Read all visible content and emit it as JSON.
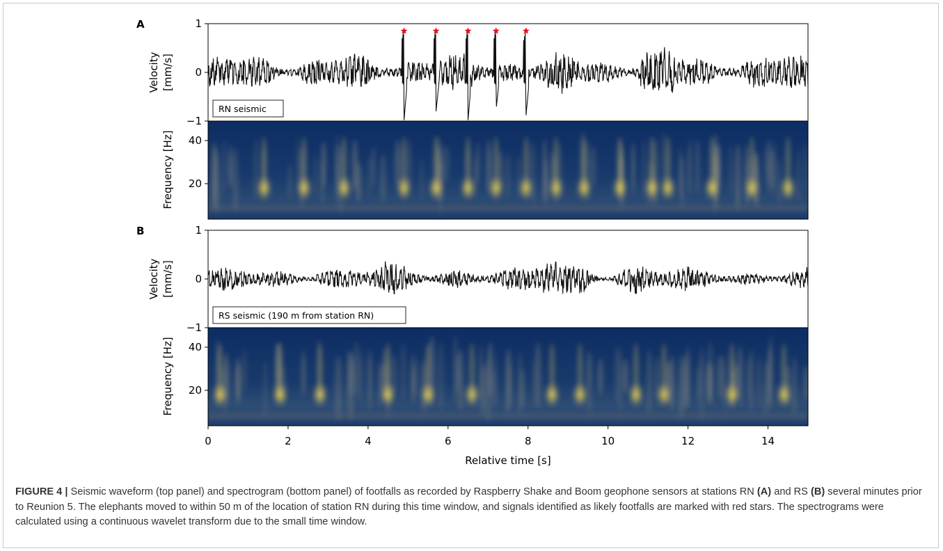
{
  "figure": {
    "caption": {
      "label": "FIGURE 4 |",
      "text_1": " Seismic waveform (top panel) and spectrogram (bottom panel) of footfalls as recorded by Raspberry Shake and Boom geophone sensors at stations RN ",
      "ref_a": "(A)",
      "text_2": " and RS ",
      "ref_b": "(B)",
      "text_3": " several minutes prior to Reunion 5. The elephants moved to within 50 m of the location of station RN during this time window, and signals identified as likely footfalls are marked with red stars. The spectrograms were calculated using a continuous wavelet transform due to the small time window."
    }
  },
  "chart_data": [
    {
      "panel": "A",
      "type": "line",
      "legend_text": "RN seismic",
      "ylabel_line1": "Velocity",
      "ylabel_line2": "[mm/s]",
      "ylim": [
        -1,
        1
      ],
      "yticks": [
        1,
        0,
        -1
      ],
      "xlim": [
        0,
        15
      ],
      "footfall_markers_x": [
        4.9,
        5.7,
        6.5,
        7.2,
        7.95
      ],
      "footfall_marker_y": 0.85,
      "marker_color": "#e8111a",
      "description_note": "",
      "spikes": [
        {
          "x": 4.9,
          "min": -0.98
        },
        {
          "x": 5.7,
          "min": -0.8
        },
        {
          "x": 6.5,
          "min": -0.98
        },
        {
          "x": 7.2,
          "min": -0.78
        },
        {
          "x": 7.95,
          "min": -0.88
        }
      ]
    },
    {
      "panel": "A",
      "type": "heatmap",
      "ylabel": "Frequency [Hz]",
      "yticks": [
        40,
        20
      ],
      "colormap": "cividis",
      "hot_spots_x": [
        1.4,
        2.4,
        3.4,
        4.9,
        5.7,
        6.5,
        7.2,
        7.95,
        8.7,
        9.4,
        10.3,
        11.1,
        11.5,
        12.6,
        13.6,
        14.5
      ]
    },
    {
      "panel": "B",
      "type": "line",
      "legend_text": "RS seismic (190 m from station RN)",
      "ylabel_line1": "Velocity",
      "ylabel_line2": "[mm/s]",
      "ylim": [
        -1,
        1
      ],
      "yticks": [
        1,
        0,
        -1
      ],
      "xlim": [
        0,
        15
      ]
    },
    {
      "panel": "B",
      "type": "heatmap",
      "ylabel": "Frequency [Hz]",
      "yticks": [
        40,
        20
      ],
      "xlabel": "Relative time [s]",
      "xticks": [
        0,
        2,
        4,
        6,
        8,
        10,
        12,
        14
      ],
      "colormap": "cividis",
      "hot_spots_x": [
        0.3,
        1.8,
        2.8,
        4.5,
        5.5,
        6.6,
        8.6,
        9.3,
        10.7,
        11.4,
        13.1,
        14.4
      ]
    }
  ]
}
